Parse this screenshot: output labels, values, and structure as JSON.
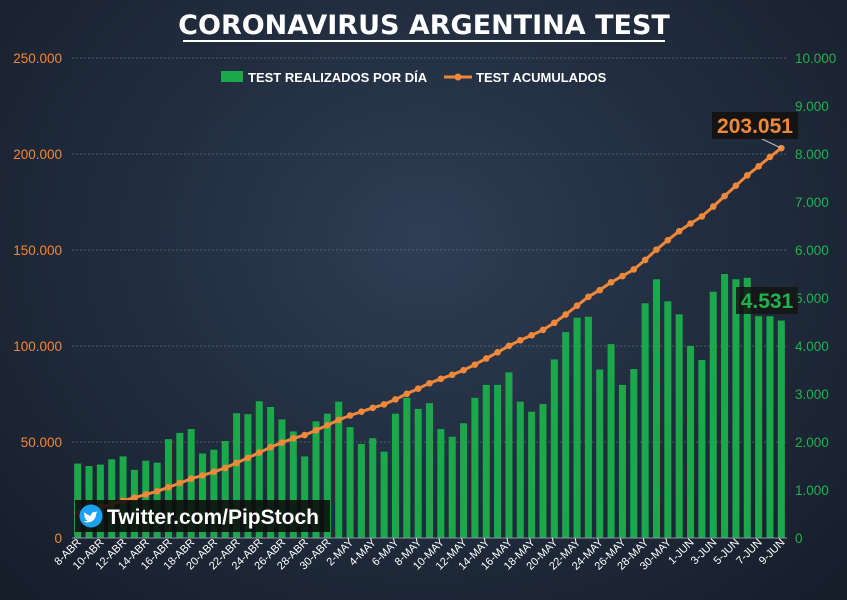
{
  "chart_data": {
    "type": "bar+line",
    "title": "CORONAVIRUS ARGENTINA TEST",
    "legend_position": "top-center",
    "grid": true,
    "categories": [
      "8-ABR",
      "9-ABR",
      "10-ABR",
      "11-ABR",
      "12-ABR",
      "13-ABR",
      "14-ABR",
      "15-ABR",
      "16-ABR",
      "17-ABR",
      "18-ABR",
      "19-ABR",
      "20-ABR",
      "21-ABR",
      "22-ABR",
      "23-ABR",
      "24-ABR",
      "25-ABR",
      "26-ABR",
      "27-ABR",
      "28-ABR",
      "29-ABR",
      "30-ABR",
      "1-MAY",
      "2-MAY",
      "3-MAY",
      "4-MAY",
      "5-MAY",
      "6-MAY",
      "7-MAY",
      "8-MAY",
      "9-MAY",
      "10-MAY",
      "11-MAY",
      "12-MAY",
      "13-MAY",
      "14-MAY",
      "15-MAY",
      "16-MAY",
      "17-MAY",
      "18-MAY",
      "19-MAY",
      "20-MAY",
      "21-MAY",
      "22-MAY",
      "23-MAY",
      "24-MAY",
      "25-MAY",
      "26-MAY",
      "27-MAY",
      "28-MAY",
      "29-MAY",
      "30-MAY",
      "31-MAY",
      "1-JUN",
      "2-JUN",
      "3-JUN",
      "4-JUN",
      "5-JUN",
      "6-JUN",
      "7-JUN",
      "8-JUN",
      "9-JUN"
    ],
    "x_tick_labels": [
      "8-ABR",
      "10-ABR",
      "12-ABR",
      "14-ABR",
      "16-ABR",
      "18-ABR",
      "20-ABR",
      "22-ABR",
      "24-ABR",
      "26-ABR",
      "28-ABR",
      "30-ABR",
      "2-MAY",
      "4-MAY",
      "6-MAY",
      "8-MAY",
      "10-MAY",
      "12-MAY",
      "14-MAY",
      "16-MAY",
      "18-MAY",
      "20-MAY",
      "22-MAY",
      "24-MAY",
      "26-MAY",
      "28-MAY",
      "30-MAY",
      "1-JUN",
      "3-JUN",
      "5-JUN",
      "7-JUN",
      "9-JUN"
    ],
    "series": [
      {
        "name": "TEST REALIZADOS POR DÍA",
        "type": "bar",
        "axis": "right",
        "color": "#1aa84a",
        "values": [
          1550,
          1500,
          1530,
          1640,
          1700,
          1420,
          1610,
          1570,
          2060,
          2190,
          2270,
          1760,
          1840,
          2020,
          2600,
          2580,
          2850,
          2730,
          2470,
          2220,
          1700,
          2430,
          2590,
          2840,
          2310,
          1960,
          2080,
          1800,
          2590,
          2920,
          2690,
          2810,
          2270,
          2110,
          2390,
          2920,
          3190,
          3190,
          3450,
          2840,
          2630,
          2790,
          3720,
          4290,
          4590,
          4610,
          3510,
          4040,
          3190,
          3520,
          4890,
          5390,
          4930,
          4660,
          4000,
          3710,
          5130,
          5500,
          5390,
          5420,
          4620,
          4620,
          4531
        ]
      },
      {
        "name": "TEST ACUMULADOS",
        "type": "line",
        "axis": "left",
        "color": "#f0883a",
        "values": [
          13000,
          14500,
          16000,
          17600,
          19400,
          21000,
          22700,
          24300,
          26400,
          28600,
          30900,
          32600,
          34500,
          36500,
          39100,
          41700,
          44500,
          47300,
          49700,
          51900,
          53600,
          56100,
          58700,
          61500,
          63800,
          65800,
          67800,
          69600,
          72200,
          75100,
          77800,
          80600,
          82900,
          85000,
          87400,
          90300,
          93500,
          96700,
          100100,
          103000,
          105600,
          108400,
          112100,
          116400,
          121000,
          125600,
          129100,
          133200,
          136400,
          139900,
          144800,
          150200,
          155100,
          159800,
          163800,
          167500,
          172600,
          178100,
          183500,
          188900,
          193600,
          198500,
          203051
        ]
      }
    ],
    "y_left": {
      "min": 0,
      "max": 250000,
      "ticks": [
        "0",
        "50.000",
        "100.000",
        "150.000",
        "200.000",
        "250.000"
      ],
      "color": "#f0883a"
    },
    "y_right": {
      "min": 0,
      "max": 10000,
      "ticks": [
        "0",
        "1.000",
        "2.000",
        "3.000",
        "4.000",
        "5.000",
        "6.000",
        "7.000",
        "8.000",
        "9.000",
        "10.000"
      ],
      "color": "#23b04d"
    },
    "annotations": {
      "last_cumulative": "203.051",
      "last_daily": "4.531"
    }
  },
  "watermark": {
    "icon": "twitter-bird-icon",
    "text": "Twitter.com/PipStoch"
  }
}
